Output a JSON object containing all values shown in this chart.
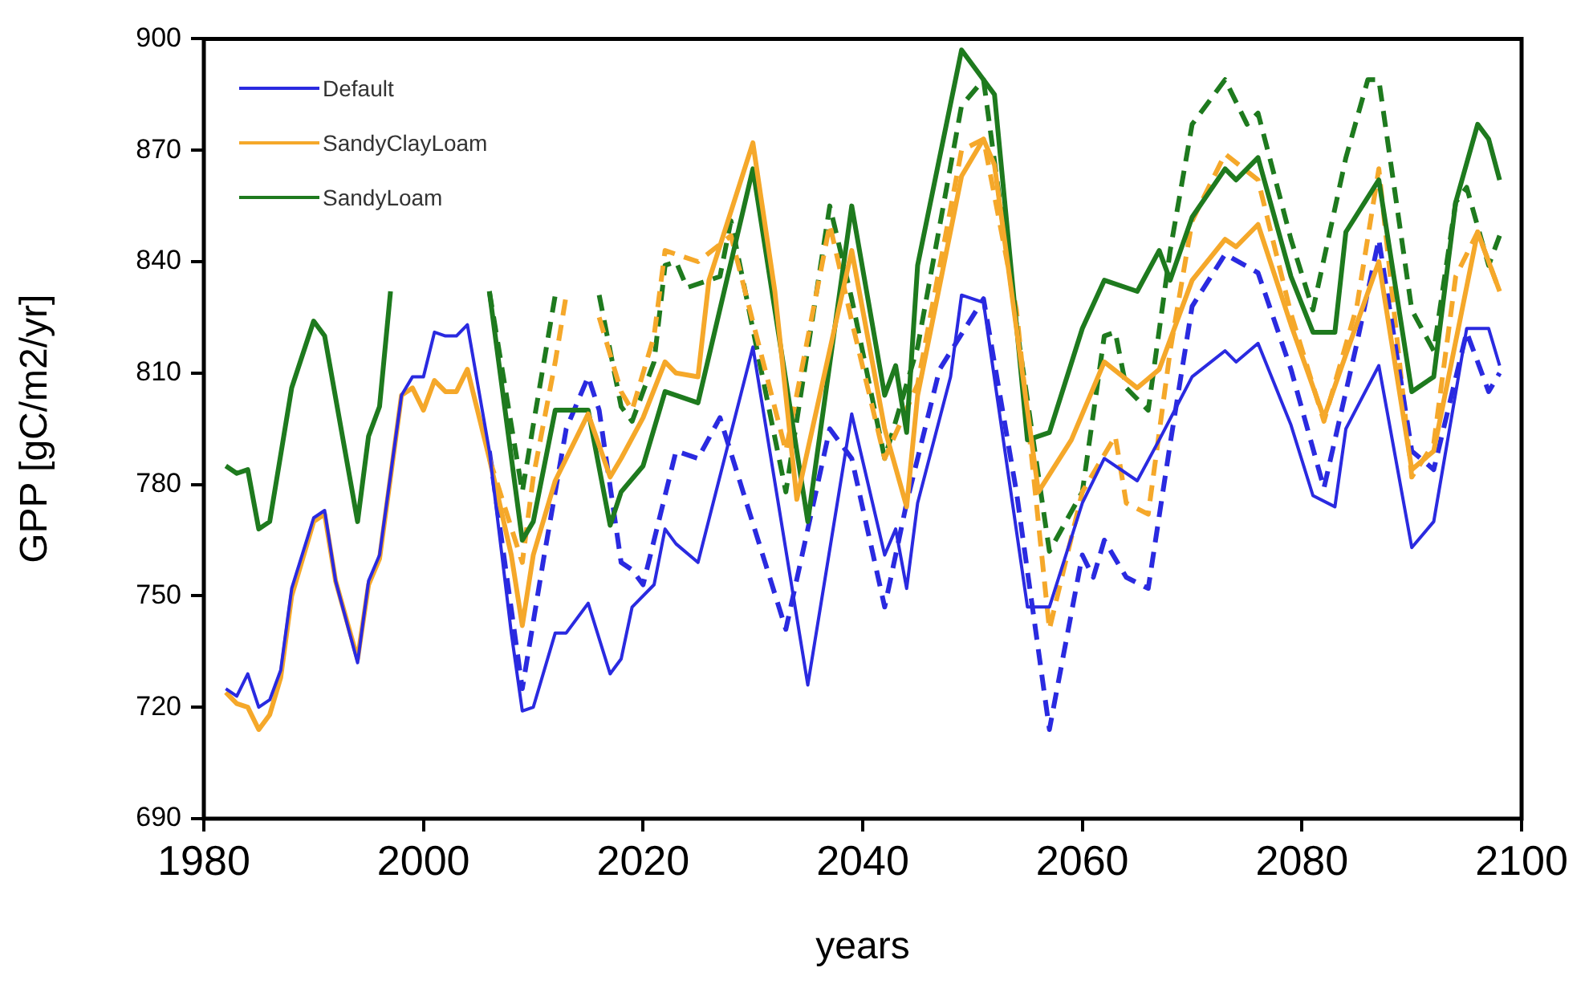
{
  "chart_data": {
    "type": "line",
    "xlabel": "years",
    "ylabel": "GPP [gC/m2/yr]",
    "xlim": [
      1980,
      2100
    ],
    "xticks": [
      1980,
      2000,
      2020,
      2040,
      2060,
      2080,
      2100
    ],
    "ylim": [
      690,
      900
    ],
    "yticks": [
      690,
      720,
      750,
      780,
      810,
      840,
      870,
      900
    ],
    "grid": false,
    "legend": "top left",
    "series": [
      {
        "name": "Default",
        "color": "#2a2ae0",
        "line_style": "solid",
        "x": [
          1982,
          1983,
          1984,
          1985,
          1986,
          1987,
          1988,
          1990,
          1991,
          1992,
          1994,
          1995,
          1996,
          1998,
          1999,
          2000,
          2001,
          2002,
          2003,
          2004,
          2006,
          2008,
          2009,
          2010,
          2012,
          2013,
          2015,
          2017,
          2018,
          2019,
          2021,
          2022,
          2023,
          2025,
          2030,
          2035,
          2039,
          2042,
          2043,
          2044,
          2045,
          2048,
          2049,
          2051,
          2055,
          2057,
          2060,
          2062,
          2065,
          2067,
          2070,
          2073,
          2074,
          2076,
          2079,
          2081,
          2083,
          2084,
          2087,
          2090,
          2092,
          2095,
          2097,
          2098
        ],
        "values": [
          725,
          723,
          729,
          720,
          722,
          730,
          752,
          771,
          773,
          754,
          732,
          754,
          761,
          804,
          809,
          809,
          821,
          820,
          820,
          823,
          789,
          740,
          719,
          720,
          740,
          740,
          748,
          729,
          733,
          747,
          753,
          768,
          764,
          759,
          817,
          726,
          799,
          761,
          768,
          752,
          775,
          809,
          831,
          829,
          747,
          747,
          775,
          787,
          781,
          792,
          809,
          816,
          813,
          818,
          796,
          777,
          774,
          795,
          812,
          763,
          770,
          822,
          822,
          812
        ]
      },
      {
        "name": "SandyClayLoam",
        "color": "#f5a82a",
        "line_style": "solid",
        "x": [
          1982,
          1983,
          1984,
          1985,
          1986,
          1987,
          1988,
          1990,
          1991,
          1992,
          1994,
          1995,
          1996,
          1998,
          1999,
          2000,
          2001,
          2002,
          2003,
          2004,
          2006,
          2008,
          2009,
          2010,
          2012,
          2015,
          2017,
          2018,
          2020,
          2022,
          2023,
          2025,
          2026,
          2030,
          2032,
          2034,
          2039,
          2042,
          2044,
          2045,
          2049,
          2051,
          2052,
          2056,
          2059,
          2061,
          2062,
          2065,
          2067,
          2070,
          2073,
          2074,
          2076,
          2079,
          2082,
          2084,
          2087,
          2090,
          2092,
          2096,
          2098
        ],
        "values": [
          724,
          721,
          720,
          714,
          718,
          728,
          750,
          770,
          772,
          754,
          733,
          753,
          760,
          804,
          806,
          800,
          808,
          805,
          805,
          811,
          787,
          761,
          742,
          761,
          781,
          799,
          782,
          787,
          798,
          813,
          810,
          809,
          835,
          872,
          832,
          776,
          843,
          795,
          774,
          804,
          863,
          873,
          866,
          778,
          792,
          806,
          813,
          806,
          811,
          835,
          846,
          844,
          850,
          823,
          798,
          815,
          840,
          784,
          789,
          848,
          832
        ]
      },
      {
        "name": "SandyLoam",
        "color": "#1e7a1e",
        "line_style": "solid",
        "x": [
          1982,
          1983,
          1984,
          1985,
          1986,
          1988,
          1990,
          1991,
          1994,
          1995,
          1996,
          1997,
          2001,
          2006,
          2009,
          2010,
          2012,
          2015,
          2017,
          2018,
          2020,
          2022,
          2025,
          2030,
          2035,
          2039,
          2042,
          2043,
          2044,
          2045,
          2049,
          2051,
          2052,
          2055,
          2057,
          2060,
          2062,
          2065,
          2067,
          2068,
          2070,
          2073,
          2074,
          2076,
          2079,
          2081,
          2083,
          2084,
          2087,
          2090,
          2092,
          2094,
          2096,
          2097,
          2098
        ],
        "values": [
          785,
          783,
          784,
          768,
          770,
          806,
          824,
          820,
          770,
          793,
          801,
          832,
          null,
          832,
          765,
          770,
          800,
          800,
          769,
          778,
          785,
          805,
          802,
          865,
          770,
          855,
          804,
          812,
          794,
          839,
          897,
          889,
          885,
          792,
          794,
          822,
          835,
          832,
          843,
          835,
          852,
          865,
          862,
          868,
          836,
          821,
          821,
          848,
          862,
          805,
          809,
          856,
          877,
          873,
          862
        ]
      },
      {
        "color": "#2a2ae0",
        "line_style": "dashed",
        "x": [
          2006,
          2009,
          2011,
          2013,
          2015,
          2016,
          2018,
          2019,
          2020,
          2023,
          2025,
          2027,
          2033,
          2037,
          2039,
          2042,
          2044,
          2047,
          2051,
          2054,
          2057,
          2060,
          2061,
          2062,
          2064,
          2066,
          2068,
          2070,
          2073,
          2076,
          2079,
          2082,
          2085,
          2087,
          2090,
          2092,
          2095,
          2097,
          2098
        ],
        "values": [
          789,
          725,
          761,
          795,
          809,
          800,
          759,
          757,
          753,
          789,
          787,
          798,
          741,
          795,
          787,
          747,
          775,
          811,
          830,
          778,
          714,
          761,
          755,
          765,
          755,
          752,
          791,
          828,
          842,
          837,
          811,
          779,
          818,
          846,
          789,
          784,
          821,
          805,
          810
        ]
      },
      {
        "color": "#f5a82a",
        "line_style": "dashed",
        "x": [
          2006,
          2009,
          2010,
          2012,
          2013,
          2015,
          2016,
          2018,
          2019,
          2021,
          2022,
          2025,
          2028,
          2033,
          2037,
          2039,
          2042,
          2045,
          2049,
          2051,
          2054,
          2057,
          2060,
          2063,
          2064,
          2066,
          2068,
          2070,
          2073,
          2076,
          2079,
          2082,
          2085,
          2087,
          2090,
          2092,
          2094,
          2096,
          2098
        ],
        "values": [
          787,
          759,
          782,
          813,
          831,
          null,
          825,
          805,
          800,
          820,
          843,
          840,
          847,
          789,
          850,
          824,
          787,
          807,
          870,
          873,
          827,
          741,
          778,
          793,
          775,
          772,
          816,
          851,
          869,
          862,
          826,
          797,
          828,
          865,
          782,
          791,
          836,
          848,
          832
        ]
      },
      {
        "color": "#1e7a1e",
        "line_style": "dashed",
        "x": [
          2006,
          2009,
          2010,
          2012,
          2014,
          2016,
          2018,
          2019,
          2021,
          2022,
          2023,
          2024,
          2027,
          2028,
          2033,
          2037,
          2039,
          2042,
          2045,
          2049,
          2051,
          2054,
          2057,
          2060,
          2062,
          2063,
          2064,
          2066,
          2068,
          2070,
          2073,
          2075,
          2076,
          2079,
          2081,
          2084,
          2086,
          2087,
          2090,
          2092,
          2094,
          2095,
          2097,
          2098
        ],
        "values": [
          832,
          778,
          796,
          831,
          null,
          831,
          801,
          797,
          813,
          839,
          840,
          833,
          836,
          851,
          778,
          855,
          830,
          787,
          817,
          882,
          889,
          823,
          762,
          778,
          820,
          821,
          806,
          800,
          843,
          877,
          889,
          877,
          880,
          846,
          827,
          868,
          889,
          889,
          827,
          816,
          856,
          860,
          839,
          847
        ]
      }
    ]
  }
}
